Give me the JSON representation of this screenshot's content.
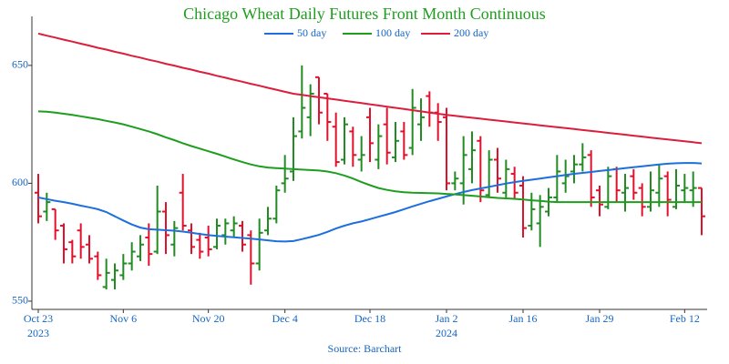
{
  "chart_data": {
    "type": "ohlc",
    "title": "Chicago Wheat Daily Futures Front Month Continuous",
    "title_color": "#1e9e1e",
    "source": "Source: Barchart",
    "up_color": "#228b22",
    "down_color": "#e0112b",
    "axis_color": "#1565c0",
    "legend_position": "top",
    "x": [
      "2023-10-23",
      "2023-10-24",
      "2023-10-25",
      "2023-10-26",
      "2023-10-27",
      "2023-10-30",
      "2023-10-31",
      "2023-11-01",
      "2023-11-02",
      "2023-11-03",
      "2023-11-06",
      "2023-11-07",
      "2023-11-08",
      "2023-11-09",
      "2023-11-10",
      "2023-11-13",
      "2023-11-14",
      "2023-11-15",
      "2023-11-16",
      "2023-11-17",
      "2023-11-20",
      "2023-11-21",
      "2023-11-22",
      "2023-11-24",
      "2023-11-27",
      "2023-11-28",
      "2023-11-29",
      "2023-11-30",
      "2023-12-01",
      "2023-12-04",
      "2023-12-05",
      "2023-12-06",
      "2023-12-07",
      "2023-12-08",
      "2023-12-11",
      "2023-12-12",
      "2023-12-13",
      "2023-12-14",
      "2023-12-15",
      "2023-12-18",
      "2023-12-19",
      "2023-12-20",
      "2023-12-21",
      "2023-12-22",
      "2023-12-26",
      "2023-12-27",
      "2023-12-28",
      "2023-12-29",
      "2024-01-02",
      "2024-01-03",
      "2024-01-04",
      "2024-01-05",
      "2024-01-08",
      "2024-01-09",
      "2024-01-10",
      "2024-01-11",
      "2024-01-12",
      "2024-01-16",
      "2024-01-17",
      "2024-01-18",
      "2024-01-19",
      "2024-01-22",
      "2024-01-23",
      "2024-01-24",
      "2024-01-25",
      "2024-01-26",
      "2024-01-29",
      "2024-01-30",
      "2024-01-31",
      "2024-02-01",
      "2024-02-02",
      "2024-02-05",
      "2024-02-06",
      "2024-02-07",
      "2024-02-08",
      "2024-02-09",
      "2024-02-12",
      "2024-02-13",
      "2024-02-14"
    ],
    "open": [
      596,
      588,
      589,
      582,
      575,
      580,
      574,
      569,
      556,
      559,
      561,
      566,
      569,
      577,
      571,
      588,
      574,
      596,
      580,
      576,
      577,
      573,
      578,
      580,
      582,
      578,
      566,
      580,
      585,
      600,
      605,
      622,
      628,
      645,
      638,
      624,
      610,
      622,
      610,
      628,
      610,
      625,
      611,
      622,
      615,
      625,
      637,
      630,
      628,
      600,
      600,
      606,
      618,
      595,
      610,
      596,
      604,
      599,
      582,
      583,
      588,
      594,
      600,
      605,
      608,
      612,
      597,
      590,
      606,
      596,
      603,
      598,
      590,
      596,
      603,
      590,
      597,
      597,
      598
    ],
    "high": [
      604,
      596,
      589,
      583,
      576,
      583,
      578,
      571,
      568,
      566,
      570,
      575,
      578,
      583,
      599,
      592,
      584,
      604,
      583,
      579,
      582,
      585,
      585,
      586,
      584,
      580,
      585,
      590,
      599,
      612,
      628,
      650,
      642,
      645,
      638,
      630,
      628,
      624,
      620,
      632,
      625,
      632,
      626,
      626,
      640,
      636,
      639,
      634,
      632,
      605,
      620,
      622,
      620,
      614,
      615,
      610,
      607,
      603,
      596,
      595,
      598,
      612,
      610,
      612,
      617,
      614,
      599,
      607,
      607,
      604,
      606,
      600,
      605,
      608,
      605,
      606,
      604,
      605,
      598
    ],
    "low": [
      583,
      584,
      576,
      566,
      566,
      568,
      566,
      559,
      555,
      555,
      559,
      563,
      567,
      565,
      570,
      570,
      569,
      580,
      570,
      568,
      569,
      572,
      574,
      577,
      571,
      557,
      563,
      578,
      583,
      596,
      601,
      619,
      620,
      625,
      618,
      607,
      608,
      607,
      605,
      609,
      606,
      608,
      609,
      610,
      612,
      618,
      624,
      618,
      597,
      597,
      591,
      600,
      592,
      594,
      596,
      594,
      593,
      577,
      580,
      573,
      586,
      592,
      596,
      600,
      605,
      590,
      586,
      589,
      592,
      588,
      593,
      586,
      588,
      590,
      586,
      589,
      592,
      590,
      578
    ],
    "close": [
      586,
      592,
      580,
      572,
      569,
      573,
      568,
      561,
      562,
      563,
      566,
      571,
      574,
      570,
      588,
      578,
      581,
      582,
      573,
      571,
      572,
      582,
      583,
      583,
      574,
      566,
      579,
      585,
      597,
      602,
      620,
      632,
      638,
      630,
      626,
      609,
      625,
      612,
      612,
      617,
      620,
      613,
      618,
      612,
      632,
      628,
      630,
      626,
      600,
      602,
      612,
      614,
      597,
      610,
      602,
      606,
      596,
      581,
      589,
      590,
      594,
      605,
      603,
      608,
      611,
      594,
      591,
      603,
      597,
      598,
      596,
      590,
      597,
      602,
      593,
      599,
      598,
      598,
      586
    ],
    "series": [
      {
        "name": "50 day",
        "color": "#1c6fdc",
        "values": [
          594.0,
          593.3,
          592.6,
          592.0,
          591.3,
          590.5,
          589.8,
          589.0,
          587.8,
          586.0,
          584.2,
          582.5,
          581.2,
          580.5,
          580.3,
          580.1,
          579.9,
          579.5,
          579.0,
          578.5,
          578.0,
          577.7,
          577.4,
          577.1,
          576.8,
          576.5,
          576.2,
          575.8,
          575.4,
          575.3,
          575.5,
          576.3,
          577.2,
          578.1,
          579.4,
          580.8,
          582.0,
          583.0,
          583.8,
          584.8,
          585.8,
          586.8,
          587.8,
          589.0,
          590.2,
          591.3,
          592.4,
          593.4,
          594.4,
          595.4,
          596.3,
          597.1,
          597.8,
          598.5,
          599.2,
          599.9,
          600.5,
          601.0,
          601.5,
          602.0,
          602.5,
          603.0,
          603.5,
          604.0,
          604.4,
          604.8,
          605.2,
          605.6,
          606.0,
          606.4,
          606.8,
          607.2,
          607.6,
          608.0,
          608.3,
          608.5,
          608.6,
          608.6,
          608.4
        ]
      },
      {
        "name": "100 day",
        "color": "#1e9e1e",
        "values": [
          630.5,
          630.4,
          630.0,
          629.5,
          629.0,
          628.4,
          627.8,
          627.2,
          626.5,
          625.8,
          625.0,
          624.0,
          623.0,
          622.0,
          620.8,
          619.5,
          618.3,
          617.0,
          615.8,
          614.7,
          613.6,
          612.5,
          611.3,
          610.1,
          609.0,
          608.0,
          607.2,
          606.7,
          606.4,
          606.2,
          606.0,
          605.8,
          605.6,
          605.4,
          605.0,
          604.3,
          603.3,
          602.0,
          600.5,
          599.2,
          598.0,
          597.2,
          596.6,
          596.2,
          596.0,
          595.9,
          595.8,
          595.7,
          595.5,
          595.3,
          595.0,
          594.7,
          594.4,
          594.1,
          593.8,
          593.6,
          593.4,
          593.1,
          592.8,
          592.5,
          592.2,
          592.0,
          592.0,
          592.0,
          592.0,
          592.0,
          592.0,
          592.0,
          592.0,
          592.0,
          592.0,
          592.0,
          592.0,
          592.0,
          592.0,
          592.0,
          592.0,
          592.0,
          592.0
        ]
      },
      {
        "name": "200 day",
        "color": "#dc1e3c",
        "values": [
          663.5,
          662.6,
          661.8,
          660.9,
          660.1,
          659.2,
          658.4,
          657.5,
          656.7,
          655.8,
          655.0,
          654.1,
          653.3,
          652.4,
          651.6,
          650.7,
          649.9,
          649.0,
          648.2,
          647.3,
          646.5,
          645.6,
          644.8,
          643.9,
          643.1,
          642.2,
          641.4,
          640.5,
          639.7,
          638.8,
          638.0,
          637.5,
          637.0,
          636.5,
          636.0,
          635.5,
          635.0,
          634.5,
          634.0,
          633.5,
          633.0,
          632.5,
          632.0,
          631.5,
          631.0,
          630.5,
          630.0,
          629.5,
          629.0,
          628.6,
          628.2,
          627.8,
          627.4,
          627.0,
          626.6,
          626.2,
          625.8,
          625.4,
          625.0,
          624.6,
          624.2,
          623.8,
          623.4,
          623.0,
          622.6,
          622.2,
          621.8,
          621.4,
          621.0,
          620.6,
          620.2,
          619.8,
          619.4,
          619.0,
          618.6,
          618.2,
          617.8,
          617.4,
          617.0
        ]
      }
    ],
    "ylim": [
      546.5,
      670.8
    ],
    "yticks": [
      550,
      600,
      650
    ],
    "xticks": [
      {
        "value": "2023-10-23",
        "label": "Oct 23",
        "year": "2023"
      },
      {
        "value": "2023-11-06",
        "label": "Nov 6"
      },
      {
        "value": "2023-11-20",
        "label": "Nov 20"
      },
      {
        "value": "2023-12-04",
        "label": "Dec 4"
      },
      {
        "value": "2023-12-18",
        "label": "Dec 18"
      },
      {
        "value": "2024-01-02",
        "label": "Jan 2",
        "year": "2024"
      },
      {
        "value": "2024-01-16",
        "label": "Jan 16"
      },
      {
        "value": "2024-01-29",
        "label": "Jan 29"
      },
      {
        "value": "2024-02-12",
        "label": "Feb 12"
      }
    ]
  }
}
